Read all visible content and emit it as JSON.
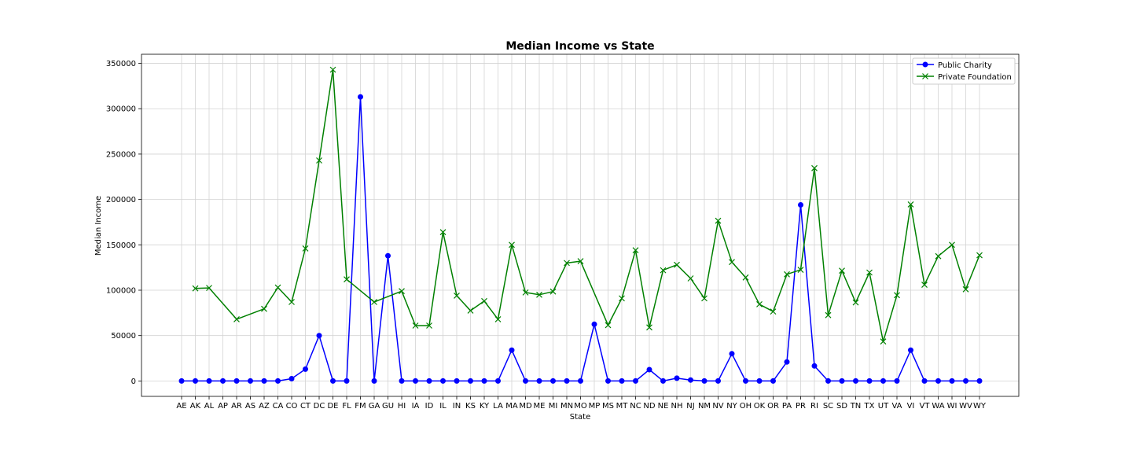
{
  "chart_data": {
    "type": "line",
    "title": "Median Income vs State",
    "xlabel": "State",
    "ylabel": "Median Income",
    "ylim": [
      -17000,
      360000
    ],
    "yticks": [
      0,
      50000,
      100000,
      150000,
      200000,
      250000,
      300000,
      350000
    ],
    "grid": true,
    "legend_position": "top-right",
    "categories": [
      "AE",
      "AK",
      "AL",
      "AP",
      "AR",
      "AS",
      "AZ",
      "CA",
      "CO",
      "CT",
      "DC",
      "DE",
      "FL",
      "FM",
      "GA",
      "GU",
      "HI",
      "IA",
      "ID",
      "IL",
      "IN",
      "KS",
      "KY",
      "LA",
      "MA",
      "MD",
      "ME",
      "MI",
      "MN",
      "MO",
      "MP",
      "MS",
      "MT",
      "NC",
      "ND",
      "NE",
      "NH",
      "NJ",
      "NM",
      "NV",
      "NY",
      "OH",
      "OK",
      "OR",
      "PA",
      "PR",
      "RI",
      "SC",
      "SD",
      "TN",
      "TX",
      "UT",
      "VA",
      "VI",
      "VT",
      "WA",
      "WI",
      "WV",
      "WY"
    ],
    "series": [
      {
        "name": "Public Charity",
        "color": "#0000ff",
        "marker": "circle",
        "values": [
          0,
          0,
          0,
          0,
          0,
          0,
          0,
          0,
          2500,
          13000,
          50000,
          0,
          0,
          313000,
          0,
          138000,
          0,
          0,
          0,
          0,
          0,
          0,
          0,
          0,
          34000,
          0,
          0,
          0,
          0,
          0,
          62500,
          0,
          0,
          0,
          12500,
          0,
          3000,
          1000,
          0,
          0,
          30000,
          0,
          0,
          0,
          21000,
          194000,
          16500,
          0,
          0,
          0,
          0,
          0,
          0,
          34000,
          0,
          0,
          0,
          0,
          0
        ]
      },
      {
        "name": "Private Foundation",
        "color": "#008000",
        "marker": "x",
        "values": [
          null,
          102000,
          102500,
          null,
          68000,
          null,
          79500,
          103000,
          87000,
          146000,
          243000,
          343000,
          112000,
          null,
          87000,
          null,
          99000,
          61000,
          61000,
          164000,
          94000,
          77500,
          88000,
          68000,
          150000,
          97500,
          95000,
          98500,
          130000,
          132000,
          null,
          61500,
          91000,
          144000,
          59000,
          122000,
          128000,
          113000,
          91000,
          176500,
          131000,
          114000,
          84500,
          76500,
          117500,
          122500,
          234500,
          72500,
          121500,
          86500,
          119500,
          43500,
          94500,
          194500,
          106000,
          137500,
          150000,
          101000,
          138500
        ]
      }
    ]
  }
}
